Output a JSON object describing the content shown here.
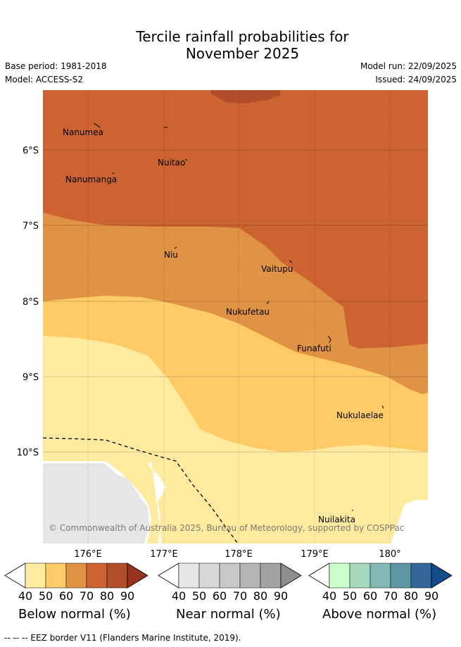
{
  "header": {
    "title_line1": "Tercile rainfall probabilities for",
    "title_line2": "November 2025",
    "base_period": "Base period: 1981-2018",
    "model": "Model: ACCESS-S2",
    "model_run": "Model run: 22/09/2025",
    "issued": "Issued: 24/09/2025"
  },
  "map": {
    "lat_labels": [
      "6°S",
      "7°S",
      "8°S",
      "9°S",
      "10°S"
    ],
    "lon_labels": [
      "176°E",
      "177°E",
      "178°E",
      "179°E",
      "180°"
    ],
    "places": [
      "Nanumea",
      "Nuitao",
      "Nanumanga",
      "Niu",
      "Vaitupu",
      "Nukufetau",
      "Funafuti",
      "Nukulaelae",
      "Nuilakita"
    ],
    "copyright": "© Commonwealth of Australia 2025, Bureau of Meteorology, supported by COSPPac",
    "colors": {
      "below": [
        "#ffeba0",
        "#ffcb66",
        "#e09245",
        "#cc6331",
        "#b04e29",
        "#98331e"
      ],
      "near": [
        "#e6e6e6",
        "#d8d8d8",
        "#c8c8c8",
        "#b4b4b4",
        "#a1a1a1",
        "#8e8e8e"
      ],
      "above": [
        "#ccffcc",
        "#a6d9bd",
        "#82b8b3",
        "#5e96a3",
        "#336699",
        "#134c86"
      ],
      "land_mask": "#e6e6e6"
    }
  },
  "colorbars": {
    "ticks": [
      "40",
      "50",
      "60",
      "70",
      "80",
      "90"
    ],
    "below_label": "Below normal (%)",
    "near_label": "Near normal (%)",
    "above_label": "Above normal (%)"
  },
  "footnote": "--  --  -- EEZ border V11 (Flanders Marine Institute, 2019)."
}
